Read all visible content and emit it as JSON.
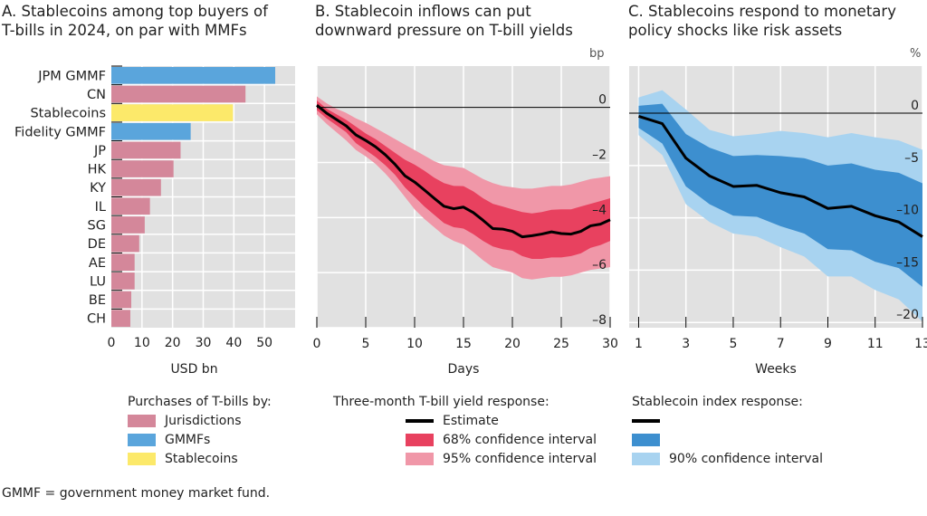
{
  "chart_data": [
    {
      "id": "A",
      "type": "bar",
      "orientation": "horizontal",
      "title": "A. Stablecoins among top buyers of\nT-bills in 2024, on par with MMFs",
      "xlabel": "USD bn",
      "ylabel": "",
      "xlim": [
        0,
        60
      ],
      "xticks": [
        0,
        10,
        20,
        30,
        40,
        50
      ],
      "grid": true,
      "categories": [
        "JPM GMMF",
        "CN",
        "Stablecoins",
        "Fidelity GMMF",
        "JP",
        "HK",
        "KY",
        "IL",
        "SG",
        "DE",
        "AE",
        "LU",
        "BE",
        "CH"
      ],
      "values": [
        53.5,
        43.8,
        39.7,
        25.9,
        22.6,
        20.3,
        16.2,
        12.6,
        10.9,
        9.1,
        7.6,
        7.6,
        6.5,
        6.2
      ],
      "groups": [
        "GMMFs",
        "Jurisdictions",
        "Stablecoins",
        "GMMFs",
        "Jurisdictions",
        "Jurisdictions",
        "Jurisdictions",
        "Jurisdictions",
        "Jurisdictions",
        "Jurisdictions",
        "Jurisdictions",
        "Jurisdictions",
        "Jurisdictions",
        "Jurisdictions"
      ],
      "legend": {
        "title": "Purchases of T-bills by:",
        "placement": "bottom",
        "items": [
          {
            "name": "Jurisdictions",
            "color": "#d4879a"
          },
          {
            "name": "GMMFs",
            "color": "#5aa5dc"
          },
          {
            "name": "Stablecoins",
            "color": "#fce96a"
          }
        ]
      }
    },
    {
      "id": "B",
      "type": "area",
      "title": "B. Stablecoin inflows can put\ndownward pressure on T-bill yields",
      "xlabel": "Days",
      "ylabel": "bp",
      "xlim": [
        0,
        30
      ],
      "ylim": [
        -8,
        1.5
      ],
      "xticks": [
        0,
        5,
        10,
        15,
        20,
        25,
        30
      ],
      "yticks": [
        0,
        -2,
        -4,
        -6,
        -8
      ],
      "ytick_labels": [
        "0",
        "–2",
        "–4",
        "–6",
        "–8"
      ],
      "grid": true,
      "x": [
        0,
        1,
        2,
        3,
        4,
        5,
        6,
        7,
        8,
        9,
        10,
        11,
        12,
        13,
        14,
        15,
        16,
        17,
        18,
        19,
        20,
        21,
        22,
        23,
        24,
        25,
        26,
        27,
        28,
        29,
        30
      ],
      "series": [
        {
          "name": "Estimate",
          "color": "#000000",
          "values": [
            0.08,
            -0.21,
            -0.44,
            -0.67,
            -1.0,
            -1.2,
            -1.43,
            -1.72,
            -2.07,
            -2.48,
            -2.71,
            -3.0,
            -3.3,
            -3.59,
            -3.68,
            -3.62,
            -3.82,
            -4.1,
            -4.4,
            -4.42,
            -4.5,
            -4.7,
            -4.66,
            -4.6,
            -4.52,
            -4.58,
            -4.6,
            -4.5,
            -4.3,
            -4.24,
            -4.08
          ]
        },
        {
          "name": "68% confidence interval",
          "color": "#e8415f",
          "upper": [
            0.25,
            -0.05,
            -0.25,
            -0.45,
            -0.7,
            -0.95,
            -1.15,
            -1.4,
            -1.65,
            -1.9,
            -2.08,
            -2.3,
            -2.55,
            -2.75,
            -2.85,
            -2.86,
            -3.05,
            -3.3,
            -3.5,
            -3.6,
            -3.7,
            -3.8,
            -3.85,
            -3.8,
            -3.72,
            -3.7,
            -3.7,
            -3.6,
            -3.5,
            -3.4,
            -3.3
          ],
          "lower": [
            -0.1,
            -0.4,
            -0.65,
            -0.9,
            -1.3,
            -1.55,
            -1.8,
            -2.1,
            -2.45,
            -2.9,
            -3.25,
            -3.6,
            -3.9,
            -4.2,
            -4.35,
            -4.4,
            -4.6,
            -4.85,
            -5.05,
            -5.15,
            -5.2,
            -5.4,
            -5.5,
            -5.5,
            -5.45,
            -5.45,
            -5.4,
            -5.3,
            -5.1,
            -5.0,
            -4.85
          ]
        },
        {
          "name": "95% confidence interval",
          "color": "#f097a8",
          "upper": [
            0.4,
            0.15,
            -0.05,
            -0.2,
            -0.4,
            -0.56,
            -0.75,
            -0.95,
            -1.15,
            -1.35,
            -1.55,
            -1.75,
            -1.95,
            -2.1,
            -2.15,
            -2.2,
            -2.4,
            -2.6,
            -2.75,
            -2.85,
            -2.9,
            -2.95,
            -2.95,
            -2.9,
            -2.85,
            -2.85,
            -2.8,
            -2.7,
            -2.6,
            -2.55,
            -2.5
          ],
          "lower": [
            -0.25,
            -0.6,
            -0.9,
            -1.2,
            -1.55,
            -1.78,
            -2.05,
            -2.4,
            -2.8,
            -3.25,
            -3.7,
            -4.05,
            -4.35,
            -4.65,
            -4.85,
            -4.98,
            -5.25,
            -5.55,
            -5.8,
            -5.9,
            -6.0,
            -6.2,
            -6.25,
            -6.2,
            -6.15,
            -6.15,
            -6.1,
            -6.0,
            -5.9,
            -5.85,
            -5.8
          ]
        }
      ],
      "legend": {
        "title": "Three-month T-bill yield response:",
        "placement": "bottom",
        "items": [
          {
            "name": "Estimate",
            "kind": "line",
            "color": "#000000"
          },
          {
            "name": "68% confidence interval",
            "kind": "area",
            "color": "#e8415f"
          },
          {
            "name": "95% confidence interval",
            "kind": "area",
            "color": "#f097a8"
          }
        ]
      }
    },
    {
      "id": "C",
      "type": "area",
      "title": "C. Stablecoins respond to monetary\npolicy shocks like risk assets",
      "xlabel": "Weeks",
      "ylabel": "%",
      "xlim": [
        0.6,
        13
      ],
      "ylim": [
        -20.5,
        4.5
      ],
      "xticks": [
        1,
        3,
        5,
        7,
        9,
        11,
        13
      ],
      "yticks": [
        0,
        -5,
        -10,
        -15,
        -20
      ],
      "ytick_labels": [
        "0",
        "–5",
        "–10",
        "–15",
        "–20"
      ],
      "grid": true,
      "x": [
        1,
        2,
        3,
        4,
        5,
        6,
        7,
        8,
        9,
        10,
        11,
        12,
        13
      ],
      "series": [
        {
          "name": "",
          "color": "#000000",
          "values": [
            -0.3,
            -1.0,
            -4.3,
            -6.0,
            -7.0,
            -6.9,
            -7.6,
            -8.0,
            -9.1,
            -8.9,
            -9.8,
            -10.4,
            -11.8
          ]
        },
        {
          "name": "",
          "color": "#3d8fcf",
          "upper": [
            0.7,
            0.9,
            -2.0,
            -3.3,
            -4.1,
            -4.0,
            -4.1,
            -4.3,
            -5.0,
            -4.8,
            -5.4,
            -5.7,
            -6.7
          ],
          "lower": [
            -1.4,
            -2.9,
            -7.0,
            -8.7,
            -9.8,
            -9.9,
            -10.8,
            -11.5,
            -13.0,
            -13.1,
            -14.2,
            -14.8,
            -16.6
          ]
        },
        {
          "name": "90% confidence interval",
          "color": "#a8d3f0",
          "upper": [
            1.5,
            2.2,
            0.35,
            -1.6,
            -2.2,
            -2.0,
            -1.7,
            -1.9,
            -2.3,
            -1.9,
            -2.3,
            -2.6,
            -3.5
          ],
          "lower": [
            -2.1,
            -4.0,
            -8.7,
            -10.4,
            -11.5,
            -11.8,
            -12.8,
            -13.7,
            -15.6,
            -15.6,
            -16.9,
            -17.8,
            -19.9
          ]
        }
      ],
      "legend": {
        "title": "Stablecoin index response:",
        "placement": "bottom",
        "items": [
          {
            "name": "",
            "kind": "line",
            "color": "#000000"
          },
          {
            "name": "",
            "kind": "area",
            "color": "#3d8fcf"
          },
          {
            "name": "90% confidence interval",
            "kind": "area",
            "color": "#a8d3f0"
          }
        ]
      }
    }
  ],
  "footnote": "GMMF = government money market fund."
}
